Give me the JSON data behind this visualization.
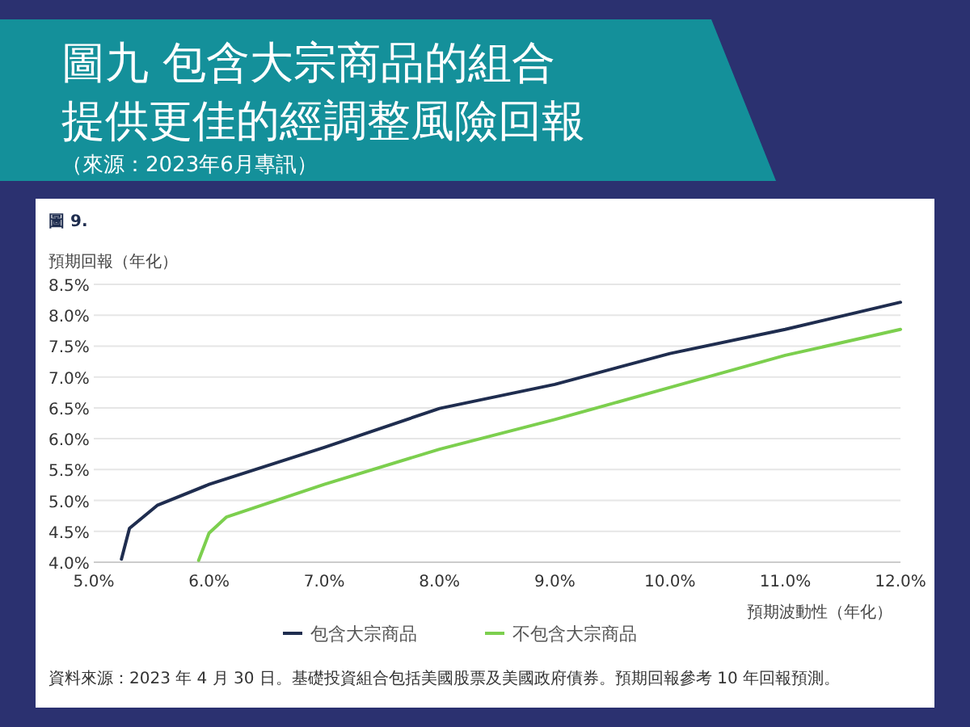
{
  "chart_data": {
    "type": "line",
    "title": "圖九 包含大宗商品的組合提供更佳的經調整風險回報",
    "subtitle": "（來源：2023年6月專訊）",
    "xlabel": "預期波動性（年化）",
    "ylabel": "預期回報（年化）",
    "annotations": [
      "圖 9.",
      "資料來源：2023 年 4 月 30 日。基礎投資組合包括美國股票及美國政府債券。預期回報參考 10 年回報預測。"
    ],
    "series": [
      {
        "name": "包含大宗商品",
        "color": "#1f2d4f",
        "x": [
          5.24,
          5.31,
          5.55,
          6.0,
          7.0,
          8.0,
          9.0,
          10.0,
          11.0,
          12.0
        ],
        "values": [
          4.05,
          4.55,
          4.92,
          5.26,
          5.86,
          6.49,
          6.88,
          7.38,
          7.77,
          8.21
        ]
      },
      {
        "name": "不包含大宗商品",
        "color": "#7ccf4e",
        "x": [
          5.91,
          6.0,
          6.15,
          7.0,
          8.0,
          9.0,
          10.0,
          11.0,
          12.0
        ],
        "values": [
          4.03,
          4.47,
          4.73,
          5.26,
          5.83,
          6.31,
          6.83,
          7.35,
          7.77
        ]
      }
    ],
    "xlim": [
      5.0,
      12.0
    ],
    "ylim": [
      4.0,
      8.5
    ],
    "xticks": [
      {
        "value": 5.0,
        "label": "5.0%"
      },
      {
        "value": 6.0,
        "label": "6.0%"
      },
      {
        "value": 7.0,
        "label": "7.0%"
      },
      {
        "value": 8.0,
        "label": "8.0%"
      },
      {
        "value": 9.0,
        "label": "9.0%"
      },
      {
        "value": 10.0,
        "label": "10.0%"
      },
      {
        "value": 11.0,
        "label": "11.0%"
      },
      {
        "value": 12.0,
        "label": "12.0%"
      }
    ],
    "yticks": [
      {
        "value": 4.0,
        "label": "4.0%"
      },
      {
        "value": 4.5,
        "label": "4.5%"
      },
      {
        "value": 5.0,
        "label": "5.0%"
      },
      {
        "value": 5.5,
        "label": "5.5%"
      },
      {
        "value": 6.0,
        "label": "6.0%"
      },
      {
        "value": 6.5,
        "label": "6.5%"
      },
      {
        "value": 7.0,
        "label": "7.0%"
      },
      {
        "value": 7.5,
        "label": "7.5%"
      },
      {
        "value": 8.0,
        "label": "8.0%"
      },
      {
        "value": 8.5,
        "label": "8.5%"
      }
    ],
    "grid": "y",
    "legend": "bottom",
    "marker": "none",
    "line_style": "solid"
  }
}
